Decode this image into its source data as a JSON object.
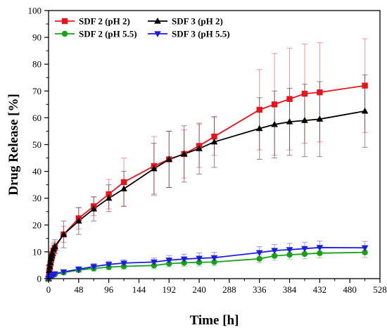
{
  "chart_data": {
    "type": "line",
    "xlabel": "Time [h]",
    "ylabel": "Drug Release [%]",
    "xlim": [
      0,
      528
    ],
    "ylim": [
      0,
      100
    ],
    "xticks": [
      0,
      48,
      96,
      144,
      192,
      240,
      288,
      336,
      384,
      432,
      480,
      528
    ],
    "yticks": [
      0,
      10,
      20,
      30,
      40,
      50,
      60,
      70,
      80,
      90,
      100
    ],
    "grid": false,
    "legend": "top-left",
    "series": [
      {
        "name": "SDF 2 (pH 2)",
        "color": "#e8141c",
        "marker": "square",
        "x": [
          0,
          1,
          2,
          3,
          4,
          5,
          6,
          8,
          10,
          24,
          48,
          72,
          96,
          120,
          168,
          192,
          216,
          240,
          264,
          336,
          360,
          384,
          408,
          432,
          504
        ],
        "y": [
          0,
          2.5,
          4.0,
          5.5,
          7.0,
          8.0,
          9.0,
          10.5,
          11.5,
          16.5,
          22.5,
          27.0,
          31.5,
          36.0,
          42.0,
          44.5,
          46.5,
          49.5,
          53.0,
          63.0,
          65.0,
          67.0,
          69.0,
          69.5,
          72.0
        ],
        "err": [
          0,
          0.5,
          0.8,
          1.0,
          1.2,
          1.3,
          1.5,
          2.0,
          2.2,
          3.0,
          4.0,
          3.5,
          5.5,
          9.0,
          11.0,
          10.5,
          9.0,
          8.0,
          7.0,
          15.0,
          19.0,
          19.0,
          18.5,
          18.5,
          17.5
        ]
      },
      {
        "name": "SDF 3 (pH 2)",
        "color": "#000000",
        "marker": "triangle-up",
        "x": [
          0,
          1,
          2,
          3,
          4,
          5,
          6,
          8,
          10,
          24,
          48,
          72,
          96,
          120,
          168,
          192,
          216,
          240,
          264,
          336,
          360,
          384,
          408,
          432,
          504
        ],
        "y": [
          0,
          3.0,
          4.5,
          6.0,
          7.5,
          8.5,
          9.5,
          11.0,
          12.0,
          16.5,
          21.5,
          26.0,
          30.0,
          33.5,
          41.0,
          44.5,
          46.5,
          48.5,
          51.0,
          56.0,
          57.5,
          58.5,
          59.0,
          59.5,
          62.5
        ],
        "err": [
          0,
          0.5,
          0.8,
          1.0,
          1.3,
          1.5,
          1.8,
          2.2,
          2.5,
          5.0,
          5.0,
          4.5,
          5.0,
          6.5,
          9.5,
          10.5,
          10.5,
          9.5,
          9.5,
          11.5,
          12.5,
          12.5,
          13.5,
          14.0,
          13.5
        ]
      },
      {
        "name": "SDF 2 (pH 5.5)",
        "color": "#19a019",
        "marker": "circle",
        "x": [
          0,
          1,
          2,
          4,
          6,
          8,
          10,
          24,
          48,
          72,
          96,
          120,
          168,
          192,
          216,
          240,
          264,
          336,
          360,
          384,
          408,
          432,
          504
        ],
        "y": [
          0,
          0.5,
          0.8,
          1.0,
          1.2,
          1.4,
          1.6,
          2.3,
          3.2,
          3.8,
          4.3,
          4.6,
          4.9,
          5.6,
          5.9,
          6.1,
          6.2,
          7.4,
          8.5,
          8.9,
          9.2,
          9.5,
          9.8
        ],
        "err": [
          0,
          0.2,
          0.3,
          0.4,
          0.5,
          0.5,
          0.6,
          0.7,
          0.8,
          1.0,
          1.0,
          1.0,
          1.2,
          1.2,
          1.3,
          1.4,
          1.4,
          1.5,
          1.6,
          1.6,
          1.8,
          1.8,
          1.9
        ]
      },
      {
        "name": "SDF 3 (pH 5.5)",
        "color": "#1c1ce0",
        "marker": "triangle-down",
        "x": [
          0,
          1,
          2,
          4,
          6,
          8,
          10,
          24,
          48,
          72,
          96,
          120,
          168,
          192,
          216,
          240,
          264,
          336,
          360,
          384,
          408,
          432,
          504
        ],
        "y": [
          0,
          0.5,
          0.8,
          1.0,
          1.2,
          1.5,
          1.8,
          2.5,
          3.5,
          4.5,
          5.3,
          5.8,
          6.2,
          6.9,
          7.3,
          7.6,
          7.8,
          9.7,
          10.5,
          10.8,
          11.2,
          11.6,
          11.5
        ],
        "err": [
          0,
          0.2,
          0.3,
          0.4,
          0.5,
          0.5,
          0.6,
          0.8,
          1.0,
          1.1,
          1.2,
          1.3,
          1.5,
          1.7,
          1.8,
          2.0,
          2.0,
          2.2,
          2.2,
          2.3,
          2.4,
          2.4,
          2.4
        ]
      }
    ]
  }
}
